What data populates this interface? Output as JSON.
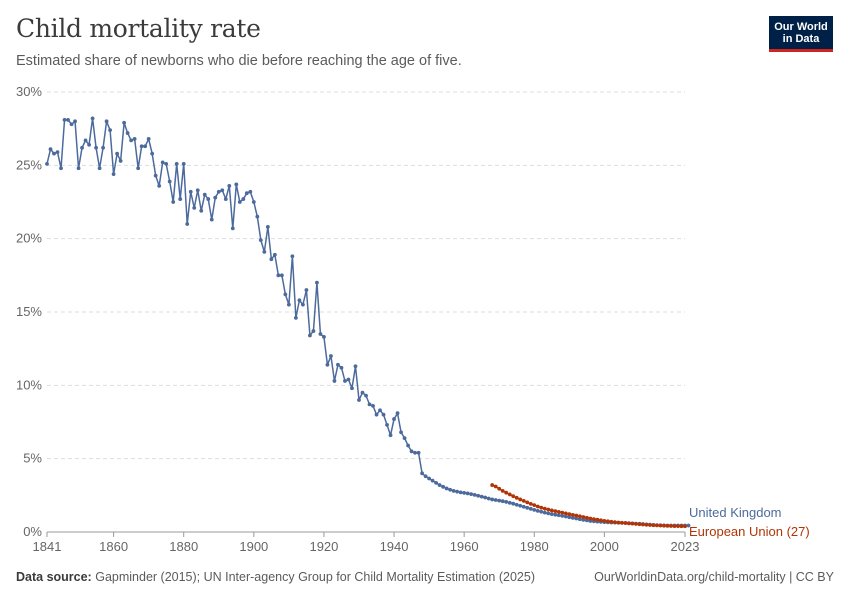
{
  "header": {
    "title": "Child mortality rate",
    "subtitle": "Estimated share of newborns who die before reaching the age of five.",
    "logo_line1": "Our World",
    "logo_line2": "in Data"
  },
  "footer": {
    "source_label": "Data source:",
    "source_text": "Gapminder (2015); UN Inter-agency Group for Child Mortality Estimation (2025)",
    "license": "OurWorldinData.org/child-mortality | CC BY"
  },
  "colors": {
    "uk": "#4c6a9c",
    "eu": "#b13507",
    "grid": "#dddddd",
    "text": "#666666"
  },
  "chart_data": {
    "type": "line",
    "title": "Child mortality rate",
    "subtitle": "Estimated share of newborns who die before reaching the age of five.",
    "xlim": [
      1841,
      2023
    ],
    "ylim": [
      0,
      30
    ],
    "x_ticks": [
      1841,
      1860,
      1880,
      1900,
      1920,
      1940,
      1960,
      1980,
      2000,
      2023
    ],
    "y_ticks": [
      "0%",
      "5%",
      "10%",
      "15%",
      "20%",
      "25%",
      "30%"
    ],
    "y_tick_values": [
      0,
      5,
      10,
      15,
      20,
      25,
      30
    ],
    "grid": "horizontal dashed",
    "series": [
      {
        "name": "United Kingdom",
        "x_start": 1841,
        "values": [
          25.1,
          26.1,
          25.8,
          25.9,
          24.8,
          28.1,
          28.1,
          27.8,
          28.0,
          24.8,
          26.2,
          26.7,
          26.4,
          28.2,
          26.2,
          24.8,
          26.2,
          28.0,
          27.4,
          24.4,
          25.8,
          25.3,
          27.9,
          27.2,
          26.7,
          26.8,
          24.8,
          26.3,
          26.3,
          26.8,
          25.8,
          24.3,
          23.6,
          25.2,
          25.1,
          23.9,
          22.5,
          25.1,
          22.7,
          25.1,
          21.0,
          23.2,
          22.1,
          23.3,
          21.9,
          23.0,
          22.7,
          21.3,
          22.8,
          23.2,
          23.3,
          22.7,
          23.6,
          20.7,
          23.7,
          22.5,
          22.7,
          23.1,
          23.2,
          22.5,
          21.5,
          19.9,
          19.1,
          20.8,
          18.6,
          18.9,
          17.5,
          17.5,
          16.2,
          15.5,
          18.8,
          14.6,
          15.8,
          15.5,
          16.5,
          13.4,
          13.7,
          17.0,
          13.5,
          13.3,
          11.4,
          12.0,
          10.3,
          11.4,
          11.2,
          10.3,
          10.4,
          9.8,
          11.3,
          9.0,
          9.5,
          9.3,
          8.7,
          8.6,
          8.0,
          8.3,
          8.0,
          7.3,
          6.6,
          7.7,
          8.1,
          6.8,
          6.4,
          5.9,
          5.5,
          5.4,
          5.4,
          4.0,
          3.8,
          3.65,
          3.5,
          3.35,
          3.2,
          3.08,
          2.97,
          2.88,
          2.8,
          2.75,
          2.7,
          2.67,
          2.63,
          2.58,
          2.53,
          2.47,
          2.41,
          2.35,
          2.28,
          2.22,
          2.18,
          2.14,
          2.1,
          2.05,
          1.99,
          1.93,
          1.86,
          1.79,
          1.72,
          1.65,
          1.58,
          1.51,
          1.44,
          1.38,
          1.32,
          1.27,
          1.22,
          1.18,
          1.14,
          1.1,
          1.06,
          1.01,
          0.96,
          0.92,
          0.87,
          0.83,
          0.79,
          0.75,
          0.73,
          0.71,
          0.69,
          0.67,
          0.66,
          0.65,
          0.64,
          0.63,
          0.62,
          0.61,
          0.6,
          0.59,
          0.57,
          0.56,
          0.54,
          0.52,
          0.5,
          0.48,
          0.47,
          0.46,
          0.45,
          0.44,
          0.44,
          0.44,
          0.44,
          0.44,
          0.44,
          0.44
        ]
      },
      {
        "name": "European Union (27)",
        "x_start": 1968,
        "values": [
          3.2,
          3.1,
          2.95,
          2.8,
          2.68,
          2.56,
          2.44,
          2.33,
          2.22,
          2.12,
          2.02,
          1.92,
          1.83,
          1.74,
          1.66,
          1.59,
          1.53,
          1.47,
          1.42,
          1.37,
          1.32,
          1.27,
          1.22,
          1.17,
          1.12,
          1.07,
          1.02,
          0.97,
          0.92,
          0.88,
          0.84,
          0.8,
          0.76,
          0.73,
          0.7,
          0.67,
          0.65,
          0.63,
          0.61,
          0.59,
          0.57,
          0.55,
          0.53,
          0.51,
          0.49,
          0.48,
          0.46,
          0.45,
          0.44,
          0.43,
          0.42,
          0.41,
          0.4,
          0.4,
          0.39,
          0.39
        ]
      }
    ]
  }
}
